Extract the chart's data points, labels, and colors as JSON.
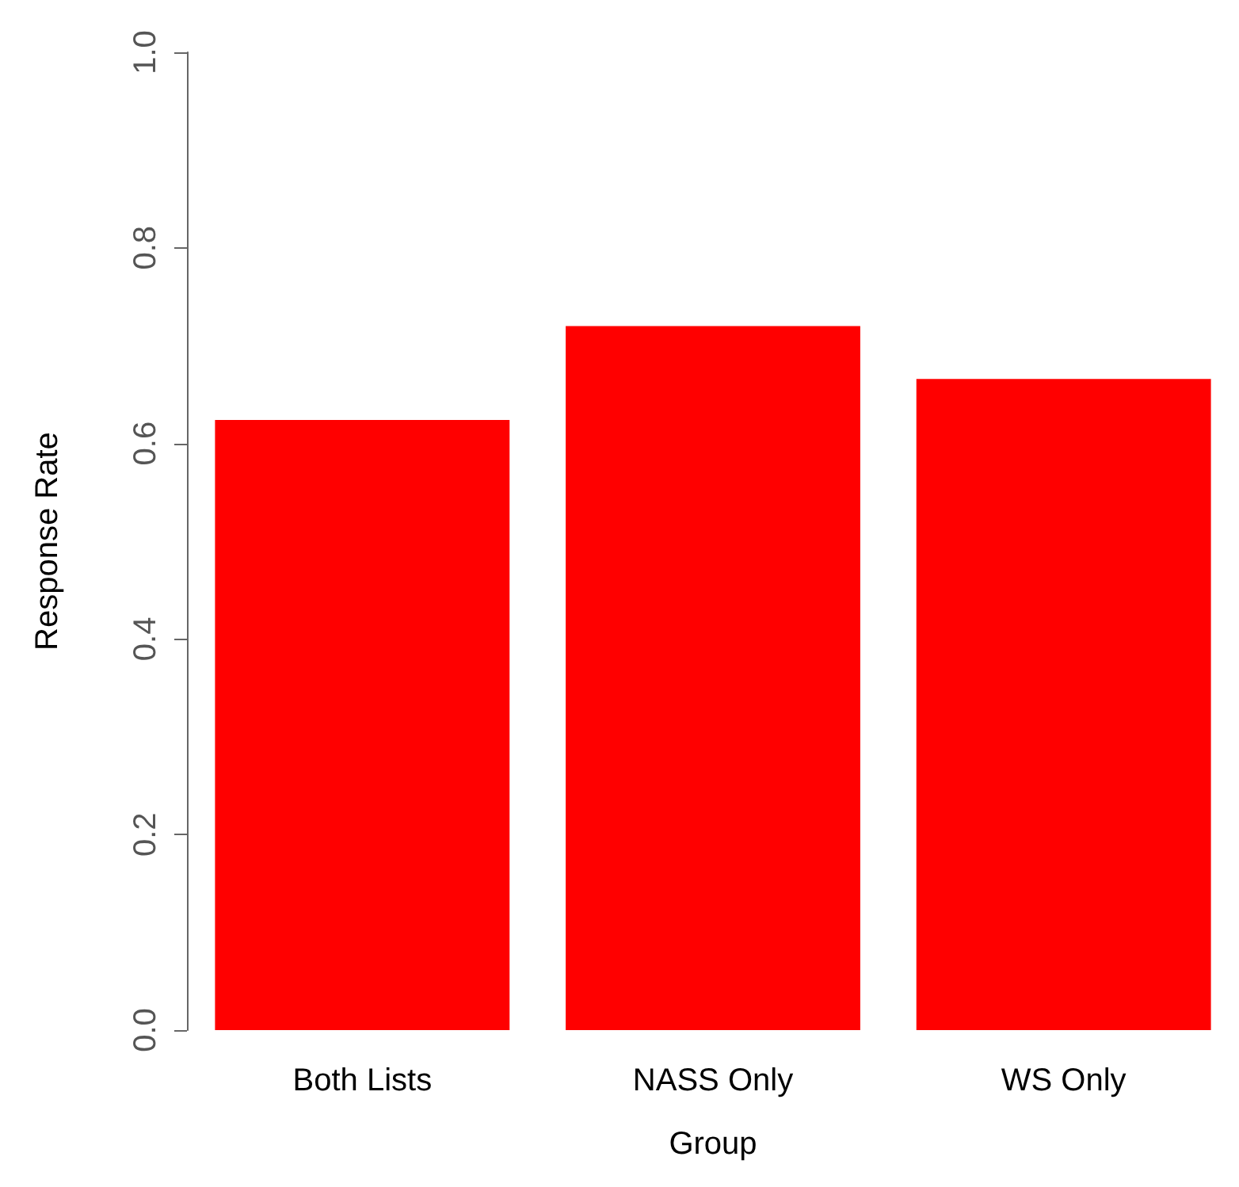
{
  "chart_data": {
    "type": "bar",
    "xlabel": "Group",
    "ylabel": "Response Rate",
    "categories": [
      "Both Lists",
      "NASS Only",
      "WS Only"
    ],
    "values": [
      0.624,
      0.72,
      0.666
    ],
    "color": "#ff0000",
    "ylim": [
      0,
      1
    ],
    "yticks": [
      {
        "value": 0,
        "label": "0.0"
      },
      {
        "value": 0.2,
        "label": "0.2"
      },
      {
        "value": 0.4,
        "label": "0.4"
      },
      {
        "value": 0.6,
        "label": "0.6"
      },
      {
        "value": 0.8,
        "label": "0.8"
      },
      {
        "value": 1,
        "label": "1.0"
      }
    ],
    "grid": false
  }
}
